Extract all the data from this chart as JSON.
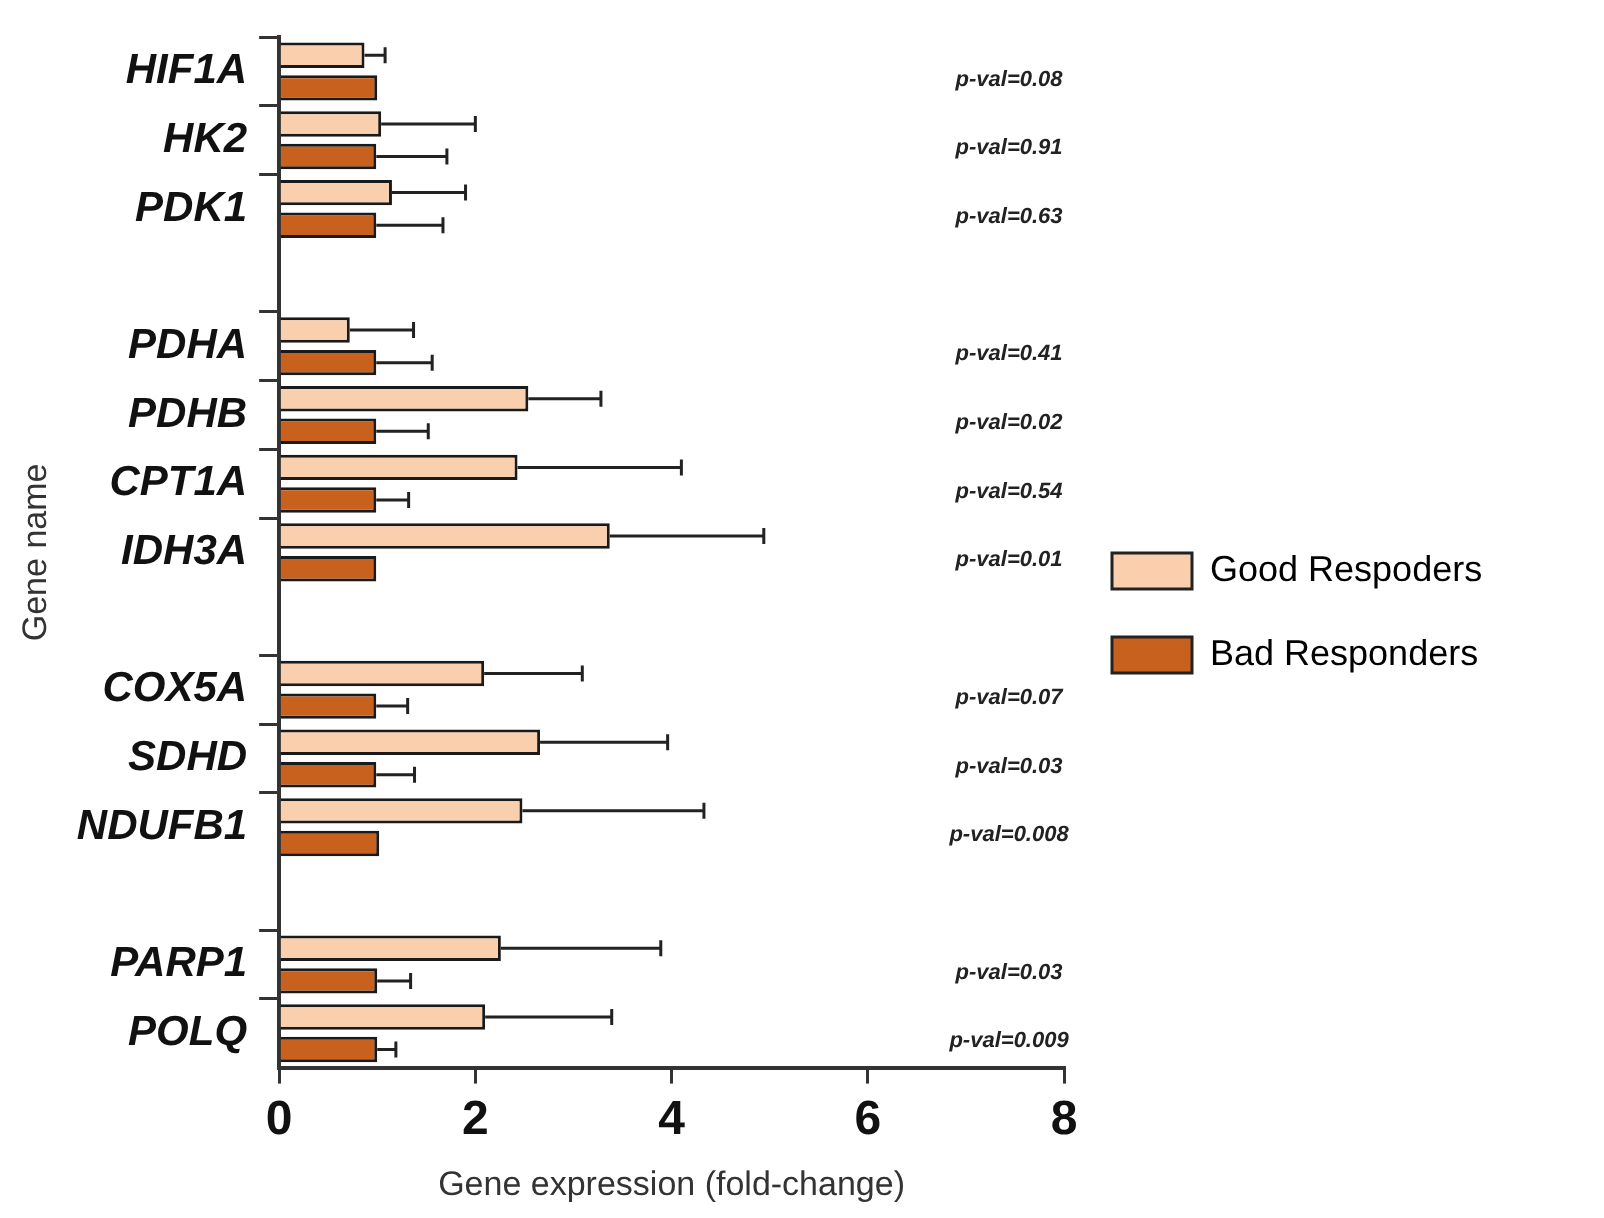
{
  "chart_data": {
    "type": "bar",
    "orientation": "horizontal",
    "xlabel": "Gene expression (fold-change)",
    "ylabel": "Gene name",
    "categories": [
      "HIF1A",
      "HK2",
      "PDK1",
      null,
      "PDHA",
      "PDHB",
      "CPT1A",
      "IDH3A",
      null,
      "COX5A",
      "SDHD",
      "NDUFB1",
      null,
      "PARP1",
      "POLQ"
    ],
    "xlim": [
      0,
      8
    ],
    "xticks": [
      0,
      2,
      4,
      6,
      8
    ],
    "grid": false,
    "legend": "right",
    "series": [
      {
        "name": "Good Respoders",
        "color": "#f9cfae",
        "values": [
          0.87,
          1.04,
          1.15,
          null,
          0.72,
          2.54,
          2.43,
          3.37,
          null,
          2.09,
          2.66,
          2.48,
          null,
          2.26,
          2.1
        ],
        "errors": [
          [
            0.87,
            1.08
          ],
          [
            1.04,
            2.0
          ],
          [
            1.15,
            1.9
          ],
          null,
          [
            0.72,
            1.37
          ],
          [
            2.54,
            3.28
          ],
          [
            2.43,
            4.1
          ],
          [
            3.37,
            4.94
          ],
          null,
          [
            2.09,
            3.09
          ],
          [
            2.66,
            3.96
          ],
          [
            2.48,
            4.33
          ],
          null,
          [
            2.26,
            3.89
          ],
          [
            2.1,
            3.39
          ]
        ]
      },
      {
        "name": "Bad Responders",
        "color": "#c8601e",
        "values": [
          1.0,
          0.99,
          0.99,
          null,
          0.99,
          0.99,
          0.99,
          0.99,
          null,
          0.99,
          0.99,
          1.02,
          null,
          1.0,
          1.0
        ],
        "errors": [
          null,
          [
            0.99,
            1.71
          ],
          [
            0.99,
            1.67
          ],
          null,
          [
            0.99,
            1.56
          ],
          [
            0.99,
            1.52
          ],
          [
            0.99,
            1.32
          ],
          null,
          null,
          [
            0.99,
            1.31
          ],
          [
            0.99,
            1.38
          ],
          null,
          null,
          [
            1.0,
            1.34
          ],
          [
            1.0,
            1.19
          ]
        ]
      }
    ],
    "annotations": [
      "p-val=0.08",
      "p-val=0.91",
      "p-val=0.63",
      "p-val=0.41",
      "p-val=0.02",
      "p-val=0.54",
      "p-val=0.01",
      "p-val=0.07",
      "p-val=0.03",
      "p-val=0.008",
      "p-val=0.03",
      "p-val=0.009"
    ]
  }
}
